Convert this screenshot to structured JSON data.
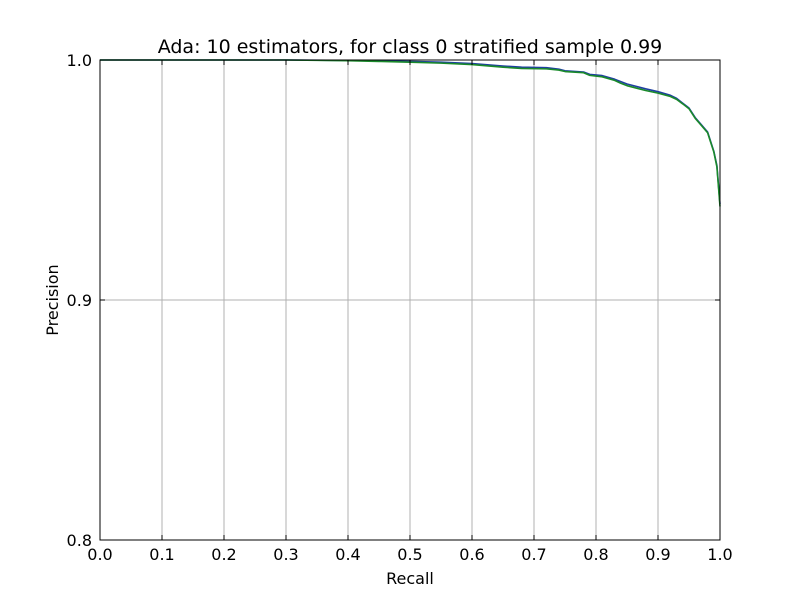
{
  "chart_data": {
    "type": "line",
    "title": "Ada: 10 estimators, for class 0 stratified sample 0.99",
    "xlabel": "Recall",
    "ylabel": "Precision",
    "xlim": [
      0.0,
      1.0
    ],
    "ylim": [
      0.8,
      1.0
    ],
    "grid": true,
    "x_ticks": [
      0.0,
      0.1,
      0.2,
      0.3,
      0.4,
      0.5,
      0.6,
      0.7,
      0.8,
      0.9,
      1.0
    ],
    "x_tick_labels": [
      "0.0",
      "0.1",
      "0.2",
      "0.3",
      "0.4",
      "0.5",
      "0.6",
      "0.7",
      "0.8",
      "0.9",
      "1.0"
    ],
    "y_ticks": [
      0.8,
      0.9,
      1.0
    ],
    "y_tick_labels": [
      "0.8",
      "0.9",
      "1.0"
    ],
    "series": [
      {
        "color": "#1f3fa0",
        "points": [
          [
            0.0,
            1.0
          ],
          [
            0.3,
            1.0
          ],
          [
            0.4,
            0.9998
          ],
          [
            0.45,
            0.9996
          ],
          [
            0.5,
            0.9994
          ],
          [
            0.55,
            0.9991
          ],
          [
            0.6,
            0.9985
          ],
          [
            0.65,
            0.9975
          ],
          [
            0.68,
            0.997
          ],
          [
            0.72,
            0.9968
          ],
          [
            0.74,
            0.9962
          ],
          [
            0.75,
            0.9955
          ],
          [
            0.78,
            0.995
          ],
          [
            0.79,
            0.994
          ],
          [
            0.81,
            0.9935
          ],
          [
            0.83,
            0.992
          ],
          [
            0.84,
            0.991
          ],
          [
            0.85,
            0.99
          ],
          [
            0.88,
            0.988
          ],
          [
            0.9,
            0.9868
          ],
          [
            0.92,
            0.9853
          ],
          [
            0.93,
            0.984
          ],
          [
            0.94,
            0.982
          ],
          [
            0.95,
            0.98
          ],
          [
            0.96,
            0.976
          ],
          [
            0.97,
            0.973
          ],
          [
            0.98,
            0.97
          ],
          [
            0.985,
            0.966
          ],
          [
            0.99,
            0.962
          ],
          [
            0.995,
            0.956
          ],
          [
            1.0,
            0.94
          ]
        ]
      },
      {
        "color": "#1a8a2a",
        "points": [
          [
            0.0,
            1.0
          ],
          [
            0.3,
            1.0
          ],
          [
            0.4,
            0.9997
          ],
          [
            0.45,
            0.9994
          ],
          [
            0.5,
            0.9991
          ],
          [
            0.55,
            0.9987
          ],
          [
            0.6,
            0.9981
          ],
          [
            0.65,
            0.997
          ],
          [
            0.68,
            0.9965
          ],
          [
            0.72,
            0.9963
          ],
          [
            0.74,
            0.9958
          ],
          [
            0.75,
            0.9952
          ],
          [
            0.78,
            0.9947
          ],
          [
            0.79,
            0.9936
          ],
          [
            0.81,
            0.993
          ],
          [
            0.83,
            0.9915
          ],
          [
            0.84,
            0.9903
          ],
          [
            0.85,
            0.9893
          ],
          [
            0.88,
            0.9873
          ],
          [
            0.9,
            0.9862
          ],
          [
            0.92,
            0.9848
          ],
          [
            0.93,
            0.9836
          ],
          [
            0.94,
            0.9817
          ],
          [
            0.95,
            0.9797
          ],
          [
            0.96,
            0.9757
          ],
          [
            0.97,
            0.9727
          ],
          [
            0.98,
            0.9697
          ],
          [
            0.985,
            0.9657
          ],
          [
            0.99,
            0.9617
          ],
          [
            0.995,
            0.9555
          ],
          [
            1.0,
            0.939
          ]
        ]
      }
    ]
  }
}
